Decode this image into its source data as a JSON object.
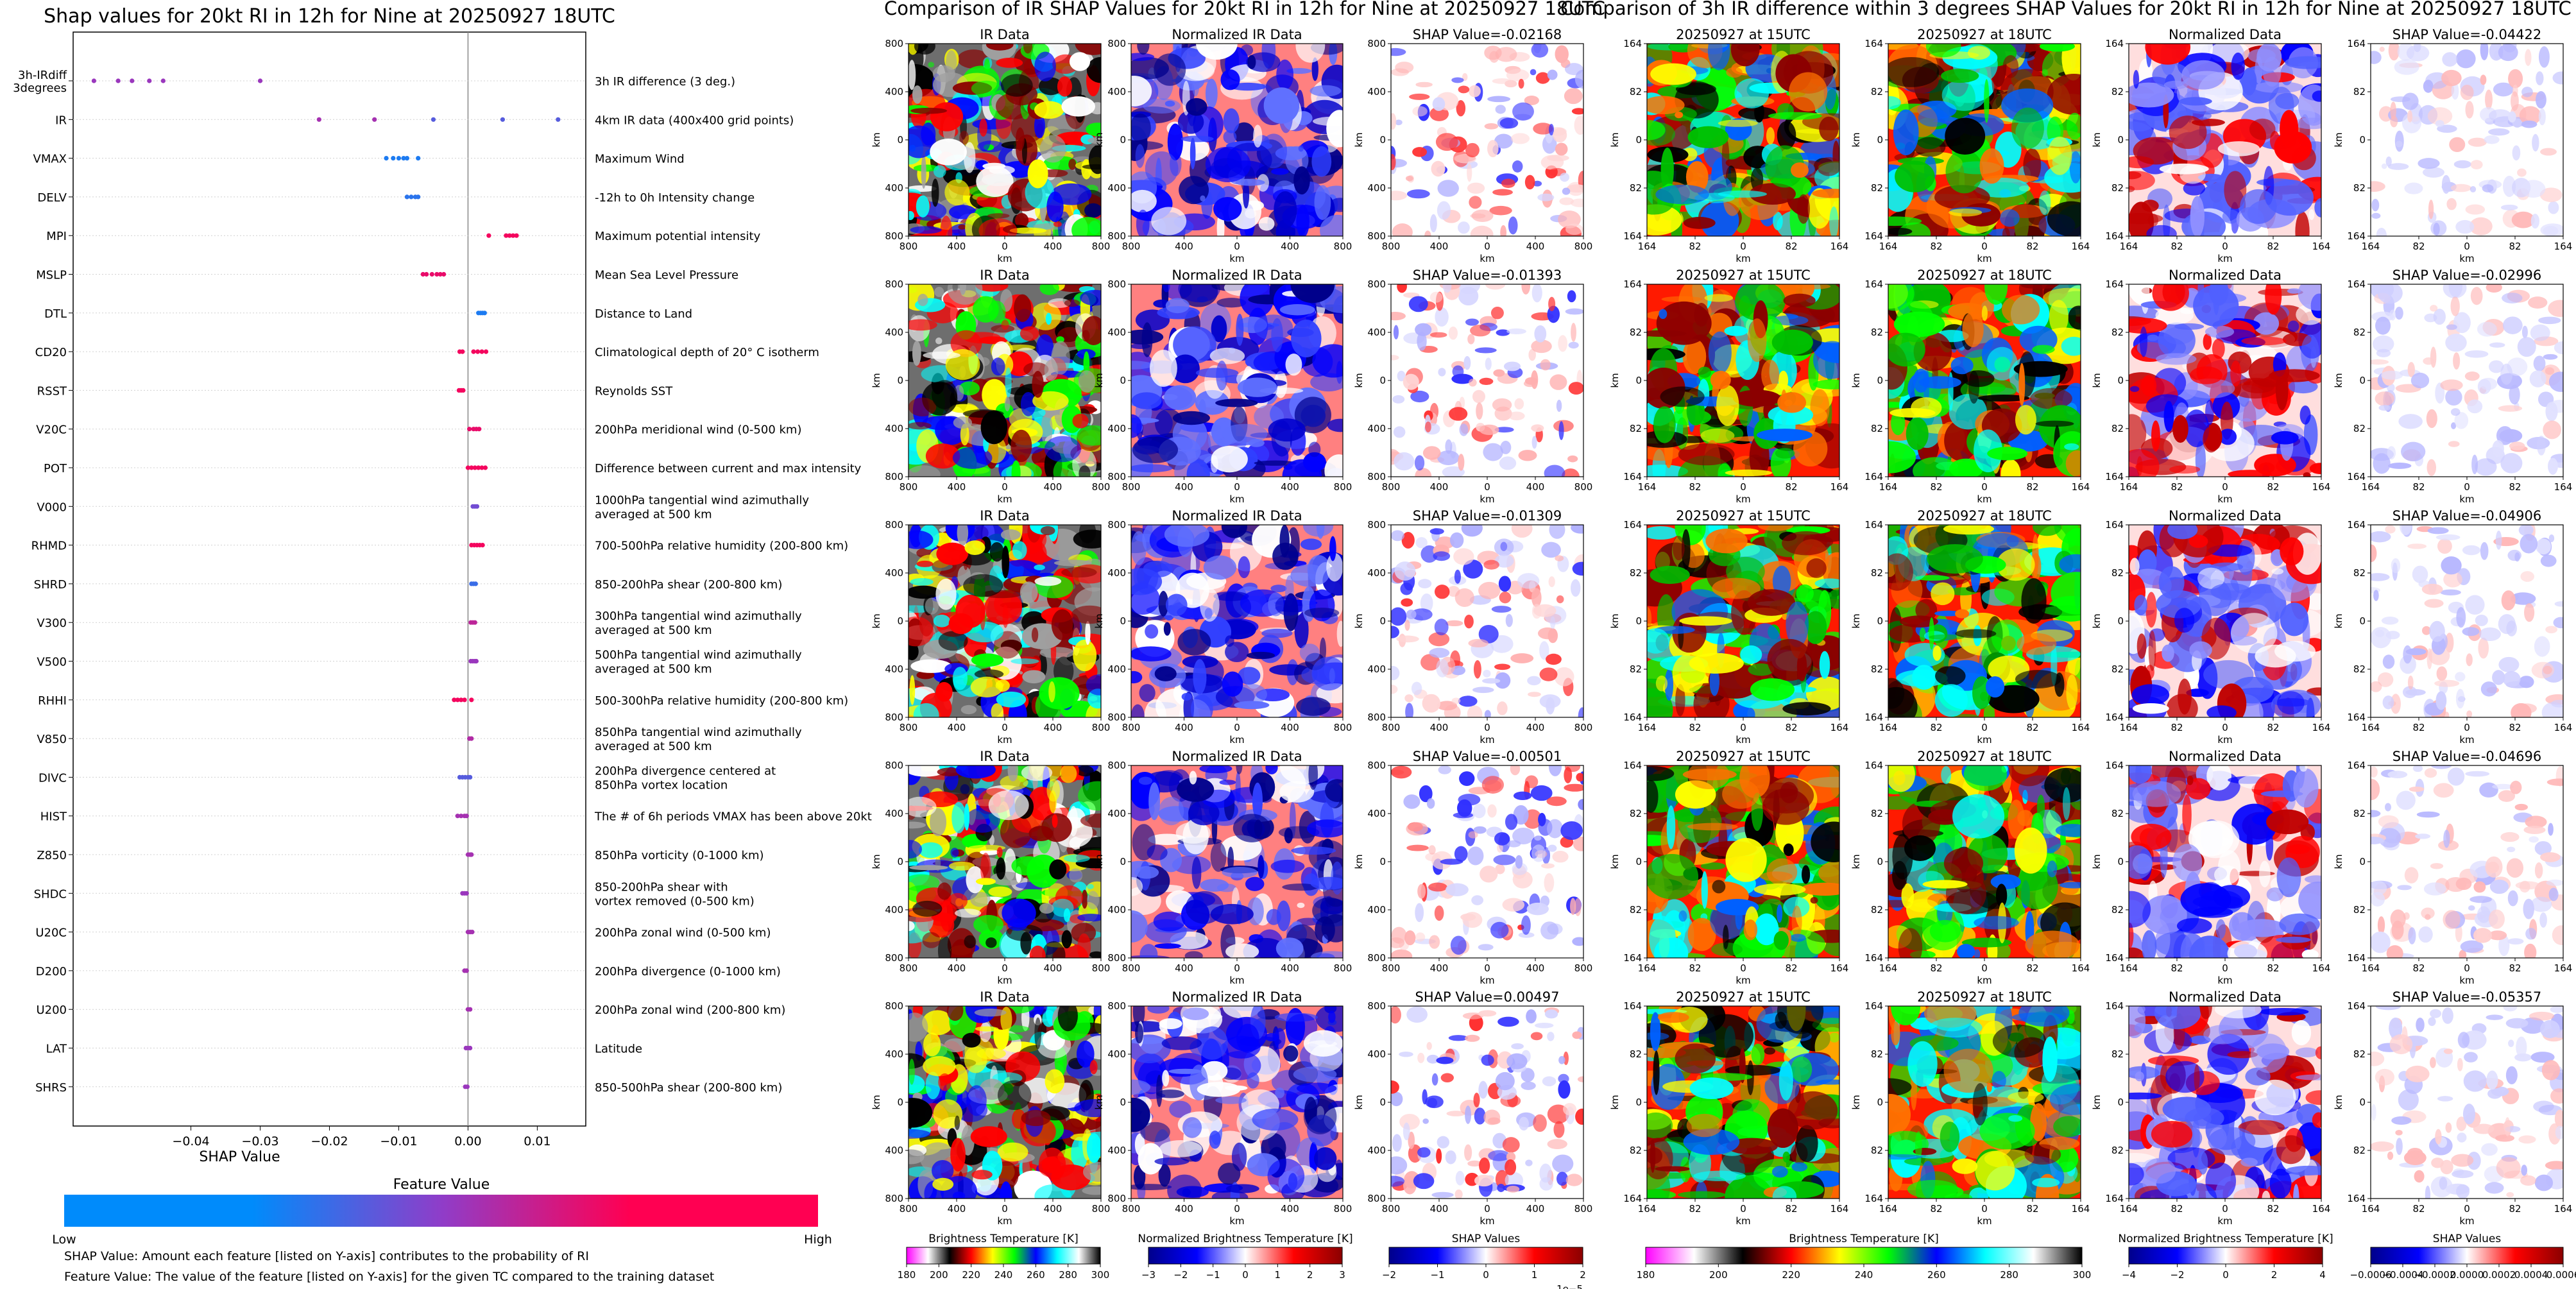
{
  "figure": {
    "colors": {
      "shap_low": "#008bfb",
      "shap_mid": "#8f3dc9",
      "shap_high": "#ff0052",
      "ir_palette": [
        "#ff00ff",
        "#ffffff",
        "#000000",
        "#ff0000",
        "#ffff00",
        "#00ff00",
        "#0000ff",
        "#00ffff",
        "#ffffff",
        "#000000"
      ],
      "diverging": [
        "#00008b",
        "#0000ff",
        "#ffffff",
        "#ff0000",
        "#8b0000"
      ]
    },
    "footnotes": {
      "line1": "SHAP Value: Amount each feature [listed on Y-axis] contributes to the probability of RI",
      "line2": "Feature Value: The value of the feature [listed on Y-axis] for the given TC compared to the training dataset"
    }
  },
  "chart_data": [
    {
      "type": "scatter",
      "title": "Shap values for 20kt RI in 12h for Nine at 20250927 18UTC",
      "xlabel": "SHAP Value",
      "xlim": [
        -0.057,
        0.017
      ],
      "xticks": [
        -0.04,
        -0.03,
        -0.02,
        -0.01,
        0.0,
        0.01
      ],
      "xtick_labels": [
        "−0.04",
        "−0.03",
        "−0.02",
        "−0.01",
        "0.00",
        "0.01"
      ],
      "grid": false,
      "colorbar": {
        "title": "Feature Value",
        "low_label": "Low",
        "high_label": "High"
      },
      "features": [
        {
          "name": "3h-IRdiff\n3degrees",
          "description": "3h IR difference (3 deg.)",
          "values": [
            -0.054,
            -0.0505,
            -0.0485,
            -0.046,
            -0.044,
            -0.03
          ],
          "fv": [
            0.55,
            0.55,
            0.55,
            0.55,
            0.55,
            0.55
          ]
        },
        {
          "name": "IR",
          "description": "4km IR data (400x400 grid points)",
          "values": [
            -0.0215,
            -0.0135,
            -0.005,
            0.005,
            0.013
          ],
          "fv": [
            0.6,
            0.6,
            0.3,
            0.3,
            0.3
          ]
        },
        {
          "name": "VMAX",
          "description": "Maximum Wind",
          "values": [
            -0.0118,
            -0.0108,
            -0.01,
            -0.0093,
            -0.0088,
            -0.0072
          ],
          "fv": [
            0.1,
            0.1,
            0.1,
            0.1,
            0.1,
            0.1
          ]
        },
        {
          "name": "DELV",
          "description": "-12h to 0h Intensity change",
          "values": [
            -0.0088,
            -0.0082,
            -0.0076,
            -0.0072
          ],
          "fv": [
            0.15,
            0.15,
            0.15,
            0.15
          ]
        },
        {
          "name": "MPI",
          "description": "Maximum potential intensity",
          "values": [
            0.003,
            0.0055,
            0.006,
            0.0065,
            0.007
          ],
          "fv": [
            0.95,
            0.95,
            0.95,
            0.95,
            0.95
          ]
        },
        {
          "name": "MSLP",
          "description": "Mean Sea Level Pressure",
          "values": [
            -0.0065,
            -0.006,
            -0.0052,
            -0.0045,
            -0.004,
            -0.0035
          ],
          "fv": [
            0.9,
            0.9,
            0.9,
            0.9,
            0.9,
            0.9
          ]
        },
        {
          "name": "DTL",
          "description": "Distance to Land",
          "values": [
            0.0015,
            0.0018,
            0.0021,
            0.0024
          ],
          "fv": [
            0.1,
            0.1,
            0.1,
            0.1
          ]
        },
        {
          "name": "CD20",
          "description": "Climatological depth of 20° C isotherm",
          "values": [
            -0.0012,
            -0.0008,
            0.0008,
            0.0014,
            0.002,
            0.0026
          ],
          "fv": [
            0.95,
            0.95,
            0.95,
            0.95,
            0.95,
            0.95
          ]
        },
        {
          "name": "RSST",
          "description": "Reynolds SST",
          "values": [
            -0.0013,
            -0.001,
            -0.0007
          ],
          "fv": [
            0.95,
            0.95,
            0.95
          ]
        },
        {
          "name": "V20C",
          "description": "200hPa meridional wind (0-500 km)",
          "values": [
            0.0002,
            0.0008,
            0.0012,
            0.0016
          ],
          "fv": [
            0.9,
            0.9,
            0.9,
            0.9
          ]
        },
        {
          "name": "POT",
          "description": "Difference between current and max intensity",
          "values": [
            0.0,
            0.0005,
            0.001,
            0.0015,
            0.002,
            0.0025
          ],
          "fv": [
            0.95,
            0.95,
            0.95,
            0.95,
            0.95,
            0.95
          ]
        },
        {
          "name": "V000",
          "description": "1000hPa tangential wind azimuthally\naveraged at 500 km",
          "values": [
            0.0007,
            0.001,
            0.0013
          ],
          "fv": [
            0.4,
            0.4,
            0.4
          ]
        },
        {
          "name": "RHMD",
          "description": "700-500hPa relative humidity (200-800 km)",
          "values": [
            0.0005,
            0.0009,
            0.0013,
            0.0017,
            0.0021
          ],
          "fv": [
            0.95,
            0.95,
            0.95,
            0.95,
            0.95
          ]
        },
        {
          "name": "SHRD",
          "description": "850-200hPa shear (200-800 km)",
          "values": [
            0.0005,
            0.0008,
            0.0011
          ],
          "fv": [
            0.2,
            0.2,
            0.2
          ]
        },
        {
          "name": "V300",
          "description": "300hPa tangential wind azimuthally\naveraged at 500 km",
          "values": [
            0.0004,
            0.0007,
            0.001
          ],
          "fv": [
            0.7,
            0.7,
            0.7
          ]
        },
        {
          "name": "V500",
          "description": "500hPa tangential wind azimuthally\naveraged at 500 km",
          "values": [
            0.0004,
            0.0007,
            0.001,
            0.0012
          ],
          "fv": [
            0.55,
            0.55,
            0.55,
            0.55
          ]
        },
        {
          "name": "RHHI",
          "description": "500-300hPa relative humidity (200-800 km)",
          "values": [
            -0.002,
            -0.0015,
            -0.001,
            -0.0005,
            0.0005
          ],
          "fv": [
            0.95,
            0.95,
            0.95,
            0.95,
            0.95
          ]
        },
        {
          "name": "V850",
          "description": "850hPa tangential wind azimuthally\naveraged at 500 km",
          "values": [
            0.0002,
            0.0005
          ],
          "fv": [
            0.65,
            0.65
          ]
        },
        {
          "name": "DIVC",
          "description": "200hPa divergence centered at\n850hPa vortex location",
          "values": [
            -0.0012,
            -0.0008,
            -0.0004,
            0.0,
            0.0003
          ],
          "fv": [
            0.3,
            0.3,
            0.3,
            0.3,
            0.3
          ]
        },
        {
          "name": "HIST",
          "description": "The # of 6h periods VMAX has been above 20kt",
          "values": [
            -0.0015,
            -0.001,
            -0.0005,
            -0.0002
          ],
          "fv": [
            0.6,
            0.6,
            0.6,
            0.6
          ]
        },
        {
          "name": "Z850",
          "description": "850hPa vorticity (0-1000 km)",
          "values": [
            0.0,
            0.0003,
            0.0005
          ],
          "fv": [
            0.6,
            0.6,
            0.6
          ]
        },
        {
          "name": "SHDC",
          "description": "850-200hPa shear with\nvortex removed (0-500 km)",
          "values": [
            -0.0008,
            -0.0005,
            -0.0002
          ],
          "fv": [
            0.55,
            0.55,
            0.55
          ]
        },
        {
          "name": "U20C",
          "description": "200hPa zonal wind (0-500 km)",
          "values": [
            0.0,
            0.0003,
            0.0006
          ],
          "fv": [
            0.6,
            0.6,
            0.6
          ]
        },
        {
          "name": "D200",
          "description": "200hPa divergence (0-1000 km)",
          "values": [
            -0.0005,
            -0.0002
          ],
          "fv": [
            0.6,
            0.6
          ]
        },
        {
          "name": "U200",
          "description": "200hPa zonal wind (200-800 km)",
          "values": [
            0.0,
            0.0003
          ],
          "fv": [
            0.6,
            0.6
          ]
        },
        {
          "name": "LAT",
          "description": "Latitude",
          "values": [
            -0.0003,
            0.0,
            0.0003
          ],
          "fv": [
            0.55,
            0.55,
            0.55
          ]
        },
        {
          "name": "SHRS",
          "description": "850-500hPa shear (200-800 km)",
          "values": [
            -0.0004,
            -0.0001
          ],
          "fv": [
            0.55,
            0.55
          ]
        }
      ]
    },
    {
      "type": "heatmap",
      "suptitle": "Comparison of IR SHAP Values for 20kt RI in 12h for Nine at 20250927 18UTC",
      "xlabel": "km",
      "ylabel": "km",
      "xtick_labels": [
        "800",
        "400",
        "0",
        "400",
        "800"
      ],
      "ytick_labels": [
        "800",
        "400",
        "0",
        "400",
        "800"
      ],
      "panel_titles": [
        "IR Data",
        "Normalized IR Data"
      ],
      "shap_titles": [
        "SHAP Value=-0.02168",
        "SHAP Value=-0.01393",
        "SHAP Value=-0.01309",
        "SHAP Value=-0.00501",
        "SHAP Value=0.00497"
      ],
      "colorbars": [
        {
          "label": "Brightness Temperature [K]",
          "ticks": [
            "180",
            "200",
            "220",
            "240",
            "260",
            "280",
            "300"
          ]
        },
        {
          "label": "Normalized Brightness Temperature [K]",
          "ticks": [
            "−3",
            "−2",
            "−1",
            "0",
            "1",
            "2",
            "3"
          ]
        },
        {
          "label": "SHAP Values",
          "ticks": [
            "−2",
            "−1",
            "0",
            "1",
            "2"
          ],
          "exponent": "1e−5"
        }
      ]
    },
    {
      "type": "heatmap",
      "suptitle": "Comparison of 3h IR difference within 3 degrees SHAP Values for 20kt RI in 12h for Nine at 20250927 18UTC",
      "xlabel": "km",
      "ylabel": "km",
      "xtick_labels": [
        "164",
        "82",
        "0",
        "82",
        "164"
      ],
      "ytick_labels": [
        "164",
        "82",
        "0",
        "82",
        "164"
      ],
      "panel_titles": [
        "20250927 at 15UTC",
        "20250927 at 18UTC",
        "Normalized Data"
      ],
      "shap_titles": [
        "SHAP Value=-0.04422",
        "SHAP Value=-0.02996",
        "SHAP Value=-0.04906",
        "SHAP Value=-0.04696",
        "SHAP Value=-0.05357"
      ],
      "colorbars": [
        {
          "label": "Brightness Temperature [K]",
          "ticks": [
            "180",
            "200",
            "220",
            "240",
            "260",
            "280",
            "300"
          ]
        },
        {
          "label": "Normalized Brightness Temperature [K]",
          "ticks": [
            "−4",
            "−2",
            "0",
            "2",
            "4"
          ]
        },
        {
          "label": "SHAP Values",
          "ticks": [
            "−0.0006",
            "−0.0004",
            "−0.0002",
            "0.0000",
            "0.0002",
            "0.0004",
            "0.0006"
          ]
        }
      ]
    }
  ]
}
